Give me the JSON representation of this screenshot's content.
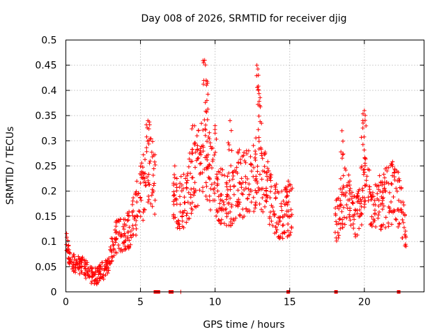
{
  "chart_data": {
    "type": "scatter",
    "title": "Day 008 of 2026, SRMTID for receiver djig",
    "xlabel": "GPS time / hours",
    "ylabel": "SRMTID / TECUs",
    "xlim": [
      0,
      24
    ],
    "ylim": [
      0,
      0.5
    ],
    "xticks": [
      0,
      5,
      10,
      15,
      20
    ],
    "xtick_labels": [
      "0",
      "5",
      "10",
      "15",
      "20"
    ],
    "yticks": [
      0,
      0.05,
      0.1,
      0.15,
      0.2,
      0.25,
      0.3,
      0.35,
      0.4,
      0.45,
      0.5
    ],
    "ytick_labels": [
      "0",
      "0.05",
      "0.1",
      "0.15",
      "0.2",
      "0.25",
      "0.3",
      "0.35",
      "0.4",
      "0.45",
      "0.5"
    ],
    "grid": true,
    "marker": "plus",
    "marker_color": "#ff0000",
    "trend": [
      {
        "x": 0.0,
        "y": 0.1
      },
      {
        "x": 0.3,
        "y": 0.06
      },
      {
        "x": 0.8,
        "y": 0.055
      },
      {
        "x": 1.2,
        "y": 0.05
      },
      {
        "x": 1.6,
        "y": 0.035
      },
      {
        "x": 2.0,
        "y": 0.03
      },
      {
        "x": 2.4,
        "y": 0.04
      },
      {
        "x": 2.8,
        "y": 0.05
      },
      {
        "x": 3.2,
        "y": 0.1
      },
      {
        "x": 3.6,
        "y": 0.12
      },
      {
        "x": 4.0,
        "y": 0.11
      },
      {
        "x": 4.4,
        "y": 0.14
      },
      {
        "x": 4.8,
        "y": 0.17
      },
      {
        "x": 5.2,
        "y": 0.21
      },
      {
        "x": 5.6,
        "y": 0.26
      },
      {
        "x": 6.0,
        "y": 0.22
      },
      {
        "x": 7.2,
        "y": 0.17
      },
      {
        "x": 7.6,
        "y": 0.18
      },
      {
        "x": 8.0,
        "y": 0.19
      },
      {
        "x": 8.4,
        "y": 0.22
      },
      {
        "x": 8.8,
        "y": 0.24
      },
      {
        "x": 9.2,
        "y": 0.27
      },
      {
        "x": 9.6,
        "y": 0.25
      },
      {
        "x": 10.0,
        "y": 0.2
      },
      {
        "x": 10.4,
        "y": 0.19
      },
      {
        "x": 10.8,
        "y": 0.18
      },
      {
        "x": 11.2,
        "y": 0.2
      },
      {
        "x": 11.6,
        "y": 0.22
      },
      {
        "x": 12.0,
        "y": 0.21
      },
      {
        "x": 12.4,
        "y": 0.22
      },
      {
        "x": 12.8,
        "y": 0.25
      },
      {
        "x": 13.2,
        "y": 0.23
      },
      {
        "x": 13.6,
        "y": 0.2
      },
      {
        "x": 14.0,
        "y": 0.17
      },
      {
        "x": 14.4,
        "y": 0.15
      },
      {
        "x": 14.8,
        "y": 0.16
      },
      {
        "x": 15.2,
        "y": 0.17
      },
      {
        "x": 18.0,
        "y": 0.13
      },
      {
        "x": 18.4,
        "y": 0.17
      },
      {
        "x": 18.8,
        "y": 0.2
      },
      {
        "x": 19.2,
        "y": 0.15
      },
      {
        "x": 19.6,
        "y": 0.16
      },
      {
        "x": 20.0,
        "y": 0.22
      },
      {
        "x": 20.4,
        "y": 0.18
      },
      {
        "x": 20.8,
        "y": 0.17
      },
      {
        "x": 21.2,
        "y": 0.18
      },
      {
        "x": 21.6,
        "y": 0.19
      },
      {
        "x": 22.0,
        "y": 0.2
      },
      {
        "x": 22.4,
        "y": 0.17
      },
      {
        "x": 22.8,
        "y": 0.12
      }
    ],
    "peaks": [
      {
        "x": 9.3,
        "y": 0.46
      },
      {
        "x": 9.4,
        "y": 0.42
      },
      {
        "x": 9.45,
        "y": 0.38
      },
      {
        "x": 12.8,
        "y": 0.45
      },
      {
        "x": 12.9,
        "y": 0.43
      },
      {
        "x": 13.0,
        "y": 0.37
      },
      {
        "x": 8.5,
        "y": 0.33
      },
      {
        "x": 5.5,
        "y": 0.34
      },
      {
        "x": 11.0,
        "y": 0.34
      },
      {
        "x": 20.0,
        "y": 0.36
      },
      {
        "x": 19.9,
        "y": 0.34
      },
      {
        "x": 18.5,
        "y": 0.32
      },
      {
        "x": 7.3,
        "y": 0.25
      },
      {
        "x": 14.9,
        "y": 0.22
      },
      {
        "x": 10.0,
        "y": 0.33
      }
    ],
    "zero_markers_x": [
      6.0,
      6.1,
      6.2,
      7.0,
      7.1,
      14.9,
      18.1,
      22.3
    ],
    "gap_tick_x": [
      7.7
    ]
  }
}
